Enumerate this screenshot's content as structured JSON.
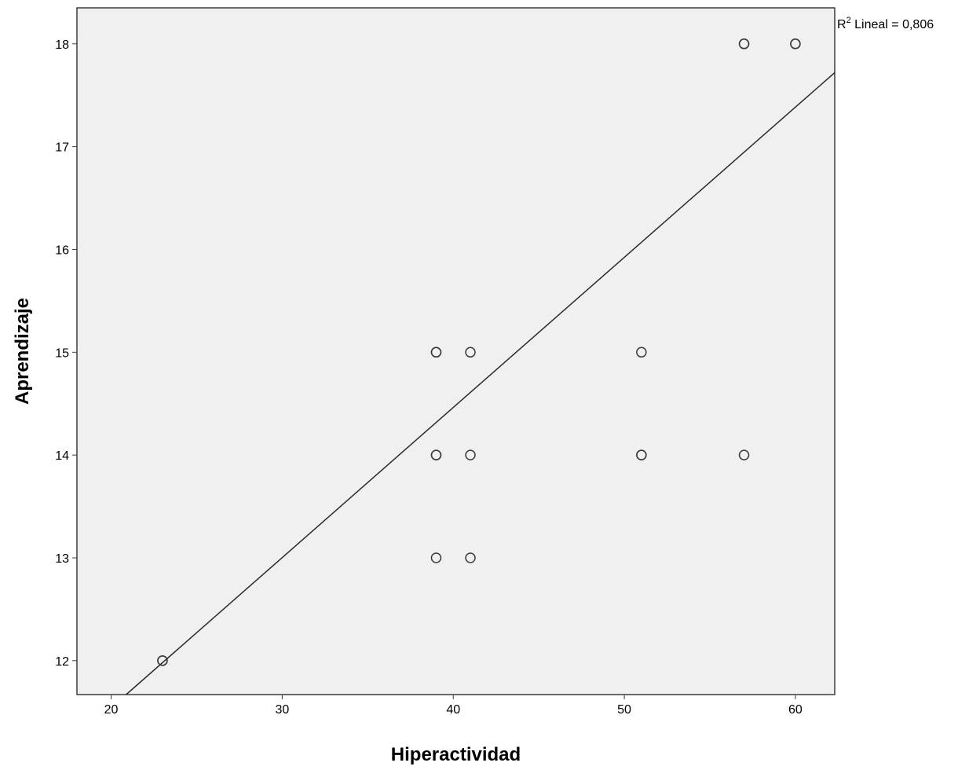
{
  "chart_data": {
    "type": "scatter",
    "xlabel": "Hiperactividad",
    "ylabel": "Aprendizaje",
    "xlim": [
      18,
      62.3
    ],
    "ylim": [
      11.67,
      18.35
    ],
    "xticks": [
      20,
      30,
      40,
      50,
      60
    ],
    "yticks": [
      12,
      13,
      14,
      15,
      16,
      17,
      18
    ],
    "x_tick_labels": [
      "20",
      "30",
      "40",
      "50",
      "60"
    ],
    "y_tick_labels": [
      "12",
      "13",
      "14",
      "15",
      "16",
      "17",
      "18"
    ],
    "points": [
      {
        "x": 23,
        "y": 12
      },
      {
        "x": 23,
        "y": 12
      },
      {
        "x": 39,
        "y": 13
      },
      {
        "x": 41,
        "y": 13
      },
      {
        "x": 39,
        "y": 14
      },
      {
        "x": 39,
        "y": 14
      },
      {
        "x": 41,
        "y": 14
      },
      {
        "x": 51,
        "y": 14
      },
      {
        "x": 51,
        "y": 14
      },
      {
        "x": 57,
        "y": 14
      },
      {
        "x": 39,
        "y": 15
      },
      {
        "x": 39,
        "y": 15
      },
      {
        "x": 41,
        "y": 15
      },
      {
        "x": 51,
        "y": 15
      },
      {
        "x": 57,
        "y": 18
      },
      {
        "x": 57,
        "y": 18
      },
      {
        "x": 60,
        "y": 18
      },
      {
        "x": 60,
        "y": 18
      }
    ],
    "fit_line": {
      "type": "linear",
      "x": [
        18,
        62.3
      ],
      "y": [
        11.25,
        17.72
      ]
    },
    "annotation": {
      "prefix": "R",
      "superscript": "2",
      "text": " Lineal = 0,806"
    },
    "grid": false,
    "legend": "none"
  },
  "colors": {
    "plot_background": "#f0f0f0",
    "frame": "#3c3c3c",
    "markers": "#3a3a3a",
    "fit_line": "#2a2a2a"
  }
}
